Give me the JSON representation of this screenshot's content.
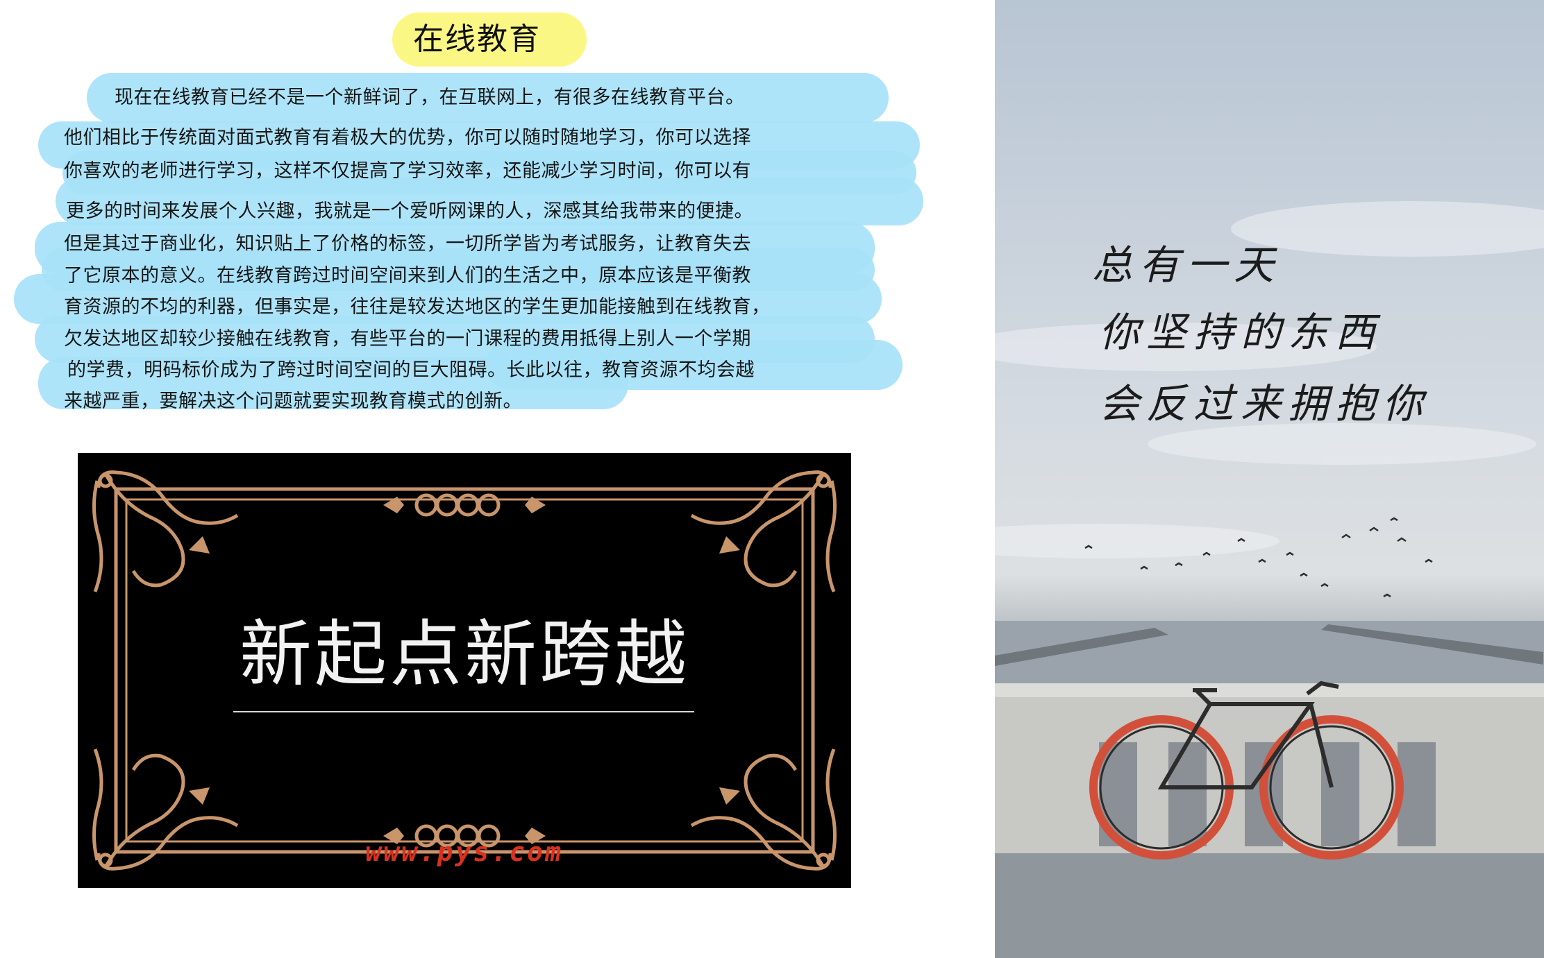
{
  "title": "在线教育",
  "paragraph_lines": [
    "现在在线教育已经不是一个新鲜词了，在互联网上，有很多在线教育平台。",
    "他们相比于传统面对面式教育有着极大的优势，你可以随时随地学习，你可以选择",
    "你喜欢的老师进行学习，这样不仅提高了学习效率，还能减少学习时间，你可以有",
    "更多的时间来发展个人兴趣，我就是一个爱听网课的人，深感其给我带来的便捷。",
    "但是其过于商业化，知识贴上了价格的标签，一切所学皆为考试服务，让教育失去",
    "了它原本的意义。在线教育跨过时间空间来到人们的生活之中，原本应该是平衡教",
    "育资源的不均的利器，但事实是，往往是较发达地区的学生更加能接触到在线教育，",
    "欠发达地区却较少接触在线教育，有些平台的一门课程的费用抵得上别人一个学期",
    "的学费，明码标价成为了跨过时间空间的巨大阻碍。长此以往，教育资源不均会越",
    "来越严重，要解决这个问题就要实现教育模式的创新。"
  ],
  "poster": {
    "title": "新起点新跨越",
    "url": "www.pys.com"
  },
  "photo": {
    "quote_lines": [
      "总有一天",
      "你坚持的东西",
      "会反过来拥抱你"
    ]
  },
  "colors": {
    "title_highlight": "#fbf784",
    "paragraph_highlight": "#a6e2f8",
    "poster_ornament": "#c9956b",
    "poster_url": "#d8321f"
  }
}
